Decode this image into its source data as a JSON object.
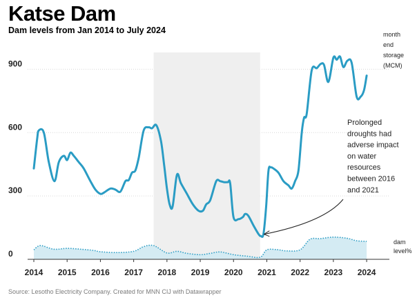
{
  "title": "Katse Dam",
  "subtitle": "Dam levels from Jan 2014 to July 2024",
  "source": "Source: Lesotho Electricity Company. Created for MNN CIJ with Datawrapper",
  "chart_data": {
    "type": "line",
    "ylim": [
      0,
      960
    ],
    "xlim": [
      2014,
      2024.6
    ],
    "yticks": [
      0,
      300,
      600,
      900
    ],
    "xticks": [
      "2014",
      "2015",
      "2016",
      "2017",
      "2018",
      "2019",
      "2020",
      "2021",
      "2022",
      "2023",
      "2024"
    ],
    "grid": true,
    "highlight_period": {
      "from": 2017.6,
      "to": 2020.8
    },
    "series": [
      {
        "name": "month end storage (MCM)",
        "color": "#2a9cc4",
        "x": [
          2014.0,
          2014.1,
          2014.15,
          2014.3,
          2014.45,
          2014.62,
          2014.75,
          2014.9,
          2015.0,
          2015.1,
          2015.2,
          2015.35,
          2015.5,
          2015.7,
          2015.85,
          2016.0,
          2016.1,
          2016.3,
          2016.45,
          2016.6,
          2016.75,
          2016.85,
          2016.95,
          2017.05,
          2017.15,
          2017.3,
          2017.45,
          2017.55,
          2017.68,
          2017.82,
          2017.92,
          2018.0,
          2018.08,
          2018.17,
          2018.3,
          2018.42,
          2018.6,
          2018.78,
          2018.95,
          2019.08,
          2019.18,
          2019.3,
          2019.48,
          2019.6,
          2019.72,
          2019.83,
          2019.9,
          2020.0,
          2020.15,
          2020.28,
          2020.35,
          2020.45,
          2020.6,
          2020.75,
          2020.82,
          2020.9,
          2020.98,
          2021.05,
          2021.12,
          2021.2,
          2021.35,
          2021.5,
          2021.65,
          2021.75,
          2021.85,
          2021.95,
          2022.05,
          2022.12,
          2022.2,
          2022.35,
          2022.5,
          2022.62,
          2022.72,
          2022.85,
          2023.0,
          2023.1,
          2023.2,
          2023.3,
          2023.42,
          2023.55,
          2023.7,
          2023.82,
          2023.92,
          2024.0
        ],
        "y": [
          430,
          570,
          610,
          600,
          460,
          370,
          460,
          490,
          470,
          505,
          490,
          460,
          430,
          370,
          330,
          310,
          315,
          335,
          330,
          320,
          370,
          375,
          410,
          420,
          480,
          610,
          625,
          620,
          635,
          560,
          440,
          335,
          260,
          250,
          400,
          360,
          310,
          260,
          230,
          230,
          260,
          280,
          370,
          370,
          365,
          365,
          360,
          200,
          190,
          200,
          215,
          205,
          160,
          120,
          110,
          120,
          250,
          420,
          435,
          430,
          410,
          370,
          350,
          335,
          370,
          420,
          600,
          670,
          690,
          895,
          905,
          925,
          920,
          840,
          955,
          945,
          960,
          910,
          940,
          930,
          770,
          770,
          800,
          870
        ]
      },
      {
        "name": "dam level%",
        "color": "#2a9cc4",
        "x": [
          2014.0,
          2014.2,
          2014.6,
          2015.0,
          2015.4,
          2015.8,
          2016.0,
          2016.5,
          2017.0,
          2017.3,
          2017.6,
          2018.0,
          2018.3,
          2018.6,
          2019.0,
          2019.3,
          2019.6,
          2020.0,
          2020.4,
          2020.8,
          2021.0,
          2021.3,
          2021.6,
          2022.0,
          2022.3,
          2022.6,
          2023.0,
          2023.4,
          2023.7,
          2024.0
        ],
        "y": [
          45,
          65,
          48,
          52,
          48,
          42,
          36,
          32,
          38,
          60,
          65,
          30,
          38,
          28,
          22,
          28,
          35,
          22,
          15,
          10,
          45,
          46,
          40,
          45,
          95,
          98,
          105,
          100,
          88,
          85
        ]
      }
    ],
    "annotation": {
      "text": [
        "Prolonged",
        "droughts had",
        "adverse impact",
        "on water",
        "resources",
        "between 2016",
        "and 2021"
      ]
    },
    "legend": {
      "storage_label": [
        "month",
        "end",
        "storage",
        "(MCM)"
      ],
      "level_label": [
        "dam",
        "level%"
      ]
    }
  }
}
